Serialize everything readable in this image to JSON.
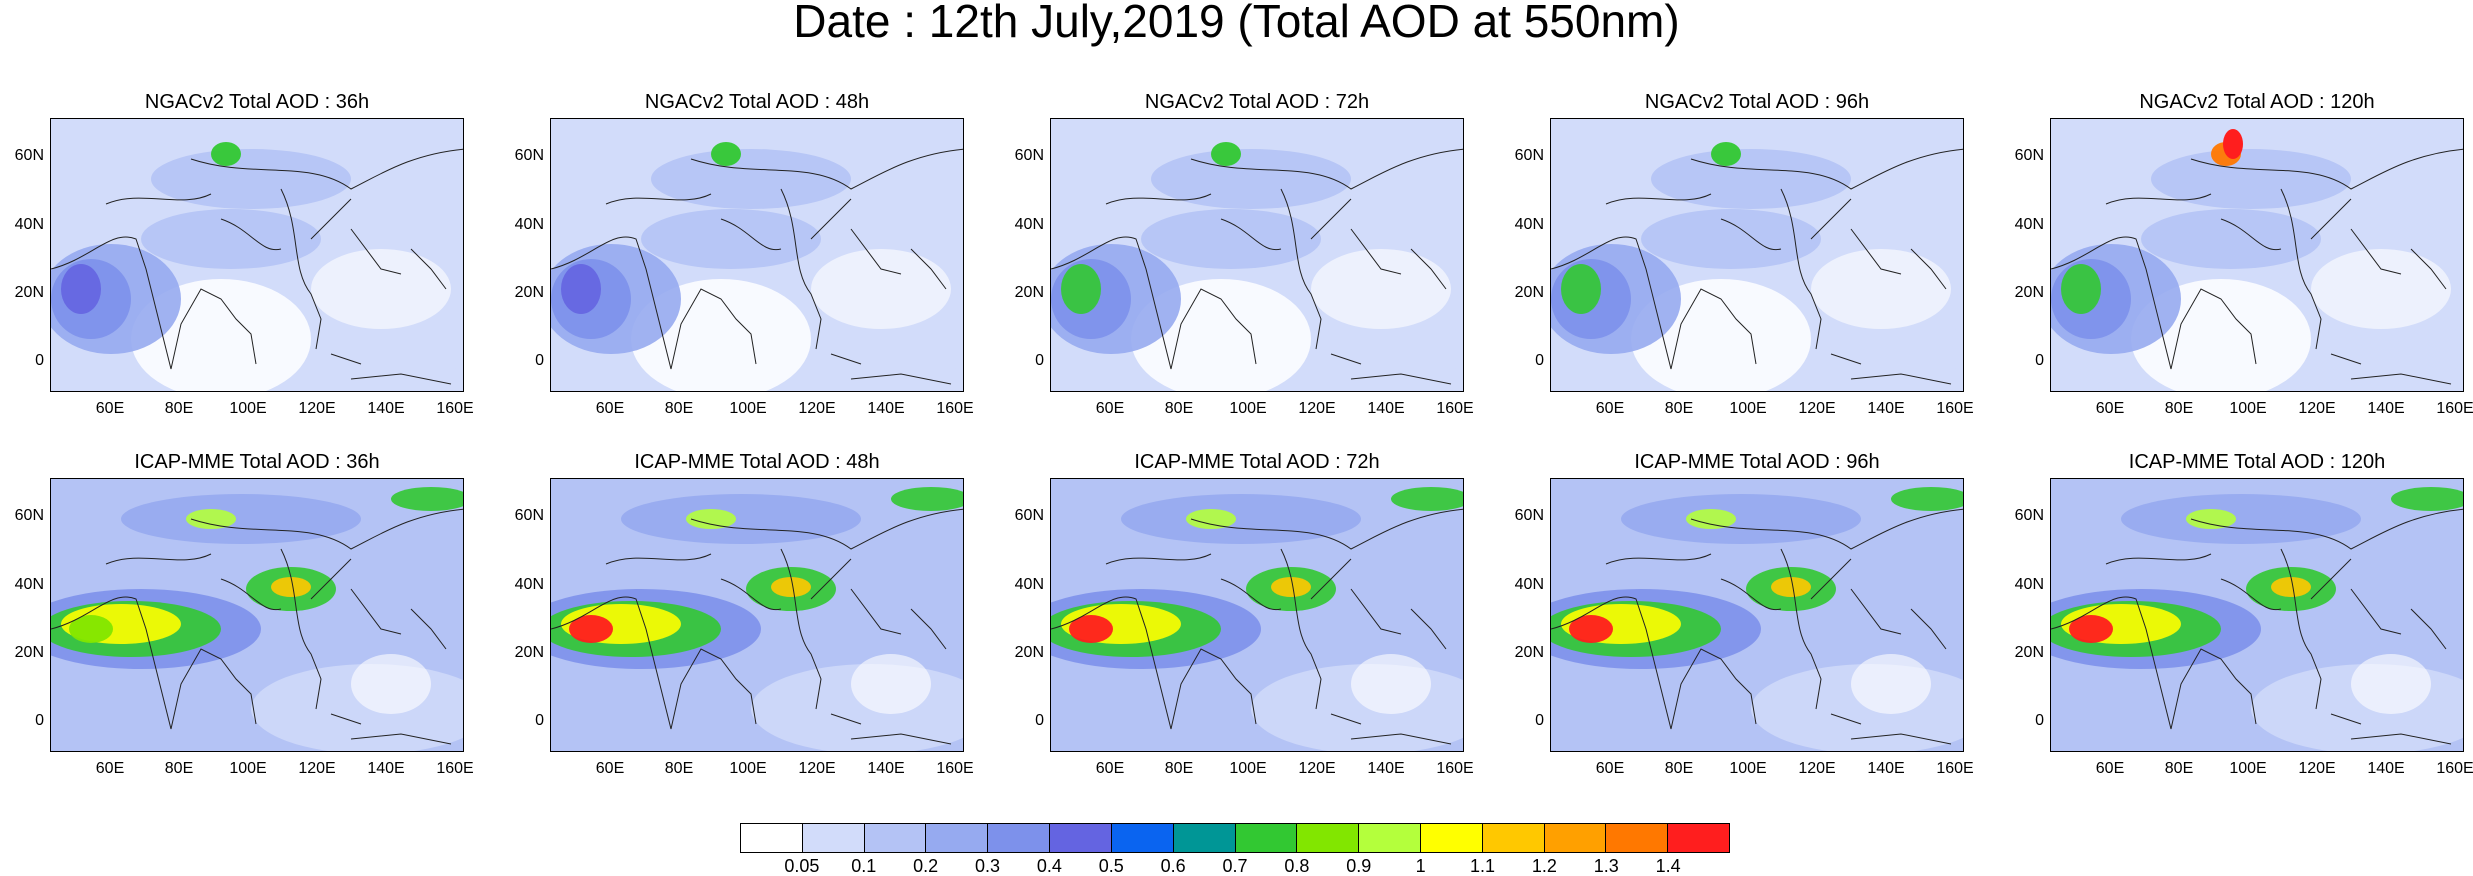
{
  "title": "Date : 12th July,2019 (Total AOD at 550nm)",
  "lat_ticks": [
    "60N",
    "40N",
    "20N",
    "0"
  ],
  "lon_ticks": [
    "60E",
    "80E",
    "100E",
    "120E",
    "140E",
    "160E"
  ],
  "panels_top": [
    {
      "title": "NGACv2 Total AOD : 36h"
    },
    {
      "title": "NGACv2 Total AOD : 48h"
    },
    {
      "title": "NGACv2 Total AOD : 72h"
    },
    {
      "title": "NGACv2 Total AOD : 96h"
    },
    {
      "title": "NGACv2 Total AOD : 120h"
    }
  ],
  "panels_bottom": [
    {
      "title": "ICAP-MME Total AOD : 36h"
    },
    {
      "title": "ICAP-MME Total AOD : 48h"
    },
    {
      "title": "ICAP-MME Total AOD : 72h"
    },
    {
      "title": "ICAP-MME Total AOD : 96h"
    },
    {
      "title": "ICAP-MME Total AOD : 120h"
    }
  ],
  "colorbar": {
    "labels": [
      "0.05",
      "0.1",
      "0.2",
      "0.3",
      "0.4",
      "0.5",
      "0.6",
      "0.7",
      "0.8",
      "0.9",
      "1",
      "1.1",
      "1.2",
      "1.3",
      "1.4"
    ],
    "colors": [
      "#ffffff",
      "#d2dcfa",
      "#b4c3f5",
      "#96aaf0",
      "#7d91eb",
      "#6464e1",
      "#0a64f0",
      "#009696",
      "#32c832",
      "#82e600",
      "#b4ff3c",
      "#ffff00",
      "#ffc800",
      "#ffa000",
      "#ff7800",
      "#ff1e1e"
    ]
  }
}
